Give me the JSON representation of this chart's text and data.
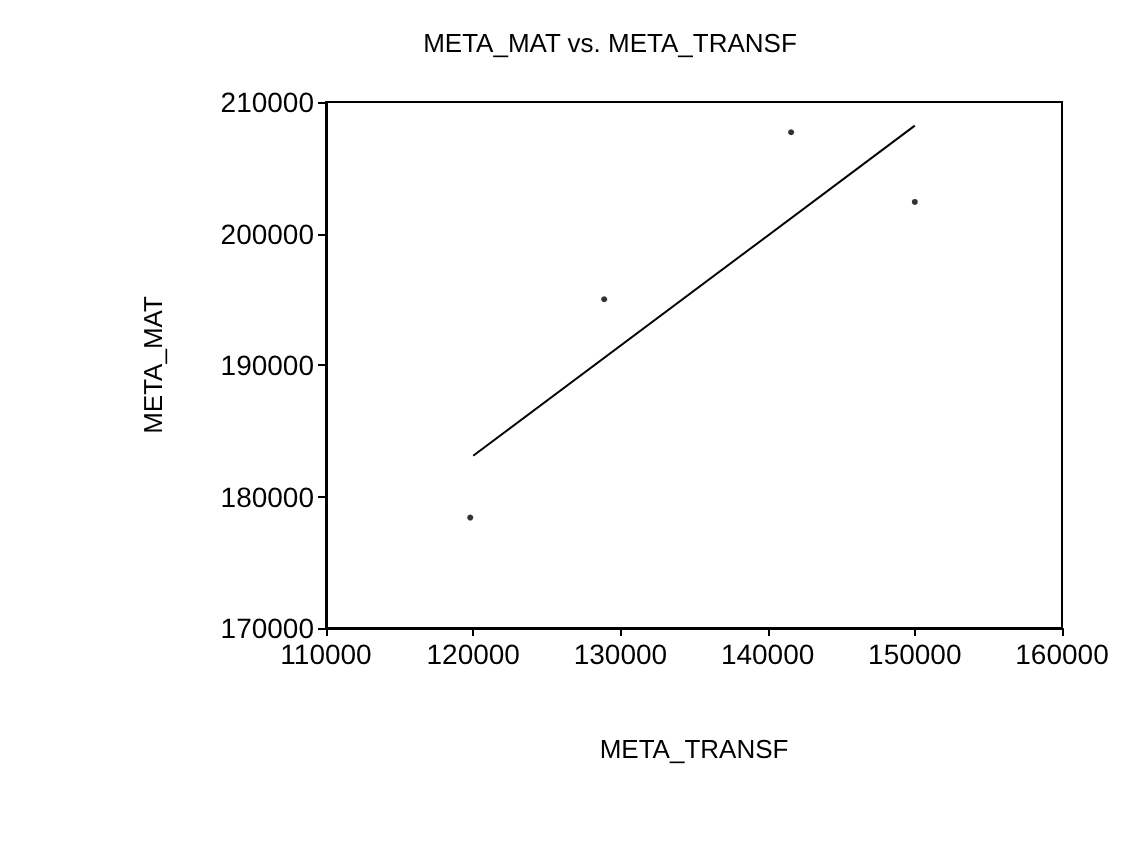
{
  "chart_data": {
    "type": "scatter",
    "title": "META_MAT vs. META_TRANSF",
    "xlabel": "META_TRANSF",
    "ylabel": "META_MAT",
    "series": [
      {
        "x": [
          119800,
          128900,
          141600,
          150000
        ],
        "values": [
          178400,
          195000,
          207700,
          202400
        ],
        "color": "#000000",
        "marker": "circle"
      },
      {
        "type": "line",
        "x": [
          120000,
          150000
        ],
        "values": [
          183100,
          208200
        ],
        "color": "#000000",
        "marker": "none",
        "line_style": "solid"
      }
    ],
    "xlim": [
      110000,
      160000
    ],
    "xticks": [
      110000,
      120000,
      130000,
      140000,
      150000,
      160000
    ],
    "ylim": [
      170000,
      210000
    ],
    "yticks": [
      170000,
      180000,
      190000,
      200000,
      210000
    ],
    "grid": false
  }
}
